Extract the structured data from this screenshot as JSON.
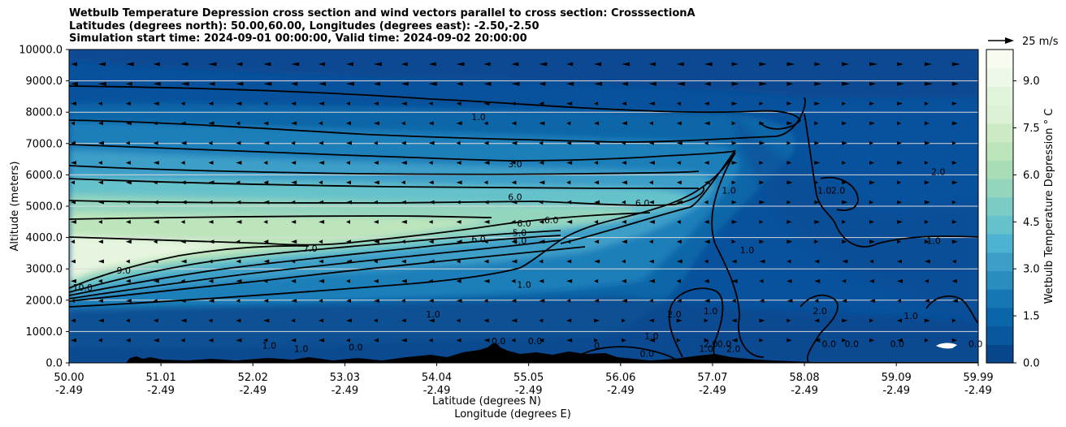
{
  "title": {
    "line1": "Wetbulb Temperature Depression cross section and wind vectors parallel to cross section: CrosssectionA",
    "line2": "Latitudes (degrees north): 50.00,60.00, Longitudes (degrees east): -2.50,-2.50",
    "line3": "Simulation start time: 2024-09-01 00:00:00, Valid time: 2024-09-02 20:00:00"
  },
  "chart_data": {
    "type": "heatmap",
    "subtype": "filled contour cross-section with line contours and wind vectors",
    "xlabel_line1": "Latitude (degrees N)",
    "xlabel_line2": "Longitude (degrees E)",
    "ylabel": "Altitude (meters)",
    "xlim": [
      50.0,
      59.99
    ],
    "ylim": [
      0,
      10000
    ],
    "x_ticks": [
      {
        "lat": "50.00",
        "lon": "-2.49",
        "value": 50.0
      },
      {
        "lat": "51.01",
        "lon": "-2.49",
        "value": 51.01
      },
      {
        "lat": "52.02",
        "lon": "-2.49",
        "value": 52.02
      },
      {
        "lat": "53.03",
        "lon": "-2.49",
        "value": 53.03
      },
      {
        "lat": "54.04",
        "lon": "-2.49",
        "value": 54.04
      },
      {
        "lat": "55.05",
        "lon": "-2.49",
        "value": 55.05
      },
      {
        "lat": "56.06",
        "lon": "-2.49",
        "value": 56.06
      },
      {
        "lat": "57.07",
        "lon": "-2.49",
        "value": 57.07
      },
      {
        "lat": "58.08",
        "lon": "-2.49",
        "value": 58.08
      },
      {
        "lat": "59.09",
        "lon": "-2.49",
        "value": 59.09
      },
      {
        "lat": "59.99",
        "lon": "-2.49",
        "value": 59.99
      }
    ],
    "y_ticks": [
      {
        "label": "0.0",
        "value": 0
      },
      {
        "label": "1000.0",
        "value": 1000
      },
      {
        "label": "2000.0",
        "value": 2000
      },
      {
        "label": "3000.0",
        "value": 3000
      },
      {
        "label": "4000.0",
        "value": 4000
      },
      {
        "label": "5000.0",
        "value": 5000
      },
      {
        "label": "6000.0",
        "value": 6000
      },
      {
        "label": "7000.0",
        "value": 7000
      },
      {
        "label": "8000.0",
        "value": 8000
      },
      {
        "label": "9000.0",
        "value": 9000
      },
      {
        "label": "10000.0",
        "value": 10000
      }
    ],
    "horizontal_grid": true,
    "colorbar": {
      "label": "Wetbulb Temperature Depression ° C",
      "range": [
        0,
        10
      ],
      "ticks": [
        "0.0",
        "1.5",
        "3.0",
        "4.5",
        "6.0",
        "7.5",
        "9.0"
      ],
      "tick_values": [
        0,
        1.5,
        3.0,
        4.5,
        6.0,
        7.5,
        9.0
      ],
      "colormap": "GnBu_r",
      "level_colors": [
        "#08468b",
        "#08589e",
        "#0a66a8",
        "#1777b5",
        "#2b8cbe",
        "#3d9fc8",
        "#4eb3d3",
        "#66c2ca",
        "#7bccc4",
        "#94d5be",
        "#a8ddb5",
        "#bde5bc",
        "#ccebc5",
        "#dcf1d6",
        "#e0f3db",
        "#eef8e8",
        "#f7fcf0"
      ]
    },
    "quiver_key": {
      "label": "25 m/s",
      "value": 25
    },
    "contour_labels": [
      {
        "text": "1.0",
        "lat": 54.5,
        "alt": 7750
      },
      {
        "text": "3.0",
        "lat": 54.9,
        "alt": 6250
      },
      {
        "text": "6.0",
        "lat": 54.9,
        "alt": 5200
      },
      {
        "text": "6.0",
        "lat": 56.3,
        "alt": 5000
      },
      {
        "text": "6.0",
        "lat": 55.0,
        "alt": 4350
      },
      {
        "text": "6.0",
        "lat": 55.3,
        "alt": 4450
      },
      {
        "text": "5.0",
        "lat": 54.95,
        "alt": 4050
      },
      {
        "text": "4.0",
        "lat": 54.95,
        "alt": 3800
      },
      {
        "text": "6.0",
        "lat": 54.5,
        "alt": 3850
      },
      {
        "text": "7.0",
        "lat": 52.65,
        "alt": 3550
      },
      {
        "text": "9.0",
        "lat": 50.6,
        "alt": 2850
      },
      {
        "text": "10.0",
        "lat": 50.15,
        "alt": 2300
      },
      {
        "text": "1.0",
        "lat": 55.0,
        "alt": 2400
      },
      {
        "text": "1.0",
        "lat": 54.0,
        "alt": 1450
      },
      {
        "text": "1.0",
        "lat": 57.25,
        "alt": 5400
      },
      {
        "text": "1.0",
        "lat": 58.3,
        "alt": 5400
      },
      {
        "text": "2.0",
        "lat": 58.45,
        "alt": 5400
      },
      {
        "text": "2.0",
        "lat": 59.55,
        "alt": 6000
      },
      {
        "text": "1.0",
        "lat": 59.5,
        "alt": 3800
      },
      {
        "text": "1.0",
        "lat": 57.45,
        "alt": 3500
      },
      {
        "text": "1.0",
        "lat": 57.05,
        "alt": 1550
      },
      {
        "text": "2.0",
        "lat": 56.65,
        "alt": 1450
      },
      {
        "text": "2.0",
        "lat": 58.25,
        "alt": 1550
      },
      {
        "text": "1.0",
        "lat": 59.25,
        "alt": 1400
      },
      {
        "text": "1.0",
        "lat": 56.4,
        "alt": 750
      },
      {
        "text": "0.0",
        "lat": 56.35,
        "alt": 200
      },
      {
        "text": "2.0",
        "lat": 57.05,
        "alt": 500
      },
      {
        "text": "0.0",
        "lat": 57.2,
        "alt": 500
      },
      {
        "text": "2.0",
        "lat": 57.3,
        "alt": 350
      },
      {
        "text": "1.0",
        "lat": 57.0,
        "alt": 350
      },
      {
        "text": "0.0",
        "lat": 58.35,
        "alt": 500
      },
      {
        "text": "0.0",
        "lat": 58.6,
        "alt": 500
      },
      {
        "text": "0.0",
        "lat": 59.1,
        "alt": 500
      },
      {
        "text": "0.0",
        "lat": 54.72,
        "alt": 600
      },
      {
        "text": "0.0",
        "lat": 55.12,
        "alt": 600
      },
      {
        "text": "1.0",
        "lat": 52.55,
        "alt": 350
      },
      {
        "text": "0.0",
        "lat": 53.15,
        "alt": 400
      },
      {
        "text": "1.0",
        "lat": 52.2,
        "alt": 450
      },
      {
        "text": "0",
        "lat": 55.8,
        "alt": 450
      },
      {
        "text": "0.0",
        "lat": 59.96,
        "alt": 500
      }
    ]
  }
}
